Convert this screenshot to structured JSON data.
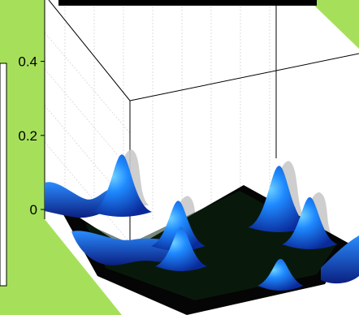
{
  "chart_data": {
    "type": "surface",
    "title": "",
    "xlabel": "",
    "ylabel": "",
    "zlabel": "",
    "zlim": [
      0,
      0.5
    ],
    "z_ticks": [
      {
        "value": 0.4,
        "label": "0.4"
      },
      {
        "value": 0.2,
        "label": "0.2"
      },
      {
        "value": 0,
        "label": "0"
      }
    ],
    "grid": true,
    "colormap": "dark-to-blue",
    "peaks": [
      {
        "id": "peak-back-left",
        "u": 0.16,
        "v": 0.25,
        "height": 0.25
      },
      {
        "id": "peak-back-mid",
        "u": 0.26,
        "v": 0.62,
        "height": 0.19
      },
      {
        "id": "peak-right-tall",
        "u": 0.72,
        "v": 0.16,
        "height": 0.27
      },
      {
        "id": "peak-right-front",
        "u": 0.78,
        "v": 0.34,
        "height": 0.2
      },
      {
        "id": "peak-left-front",
        "u": 0.2,
        "v": 0.9,
        "height": 0.16
      },
      {
        "id": "peak-front-right",
        "u": 0.52,
        "v": 0.98,
        "height": 0.1
      }
    ]
  },
  "colors": {
    "background": "#a6e05a",
    "plot_area": "#ffffff",
    "floor": "#050505",
    "surface_low": "#0a1a60",
    "surface_high": "#1a7aff",
    "shadow": "#c8c8c8",
    "title_bar": "#000000"
  }
}
